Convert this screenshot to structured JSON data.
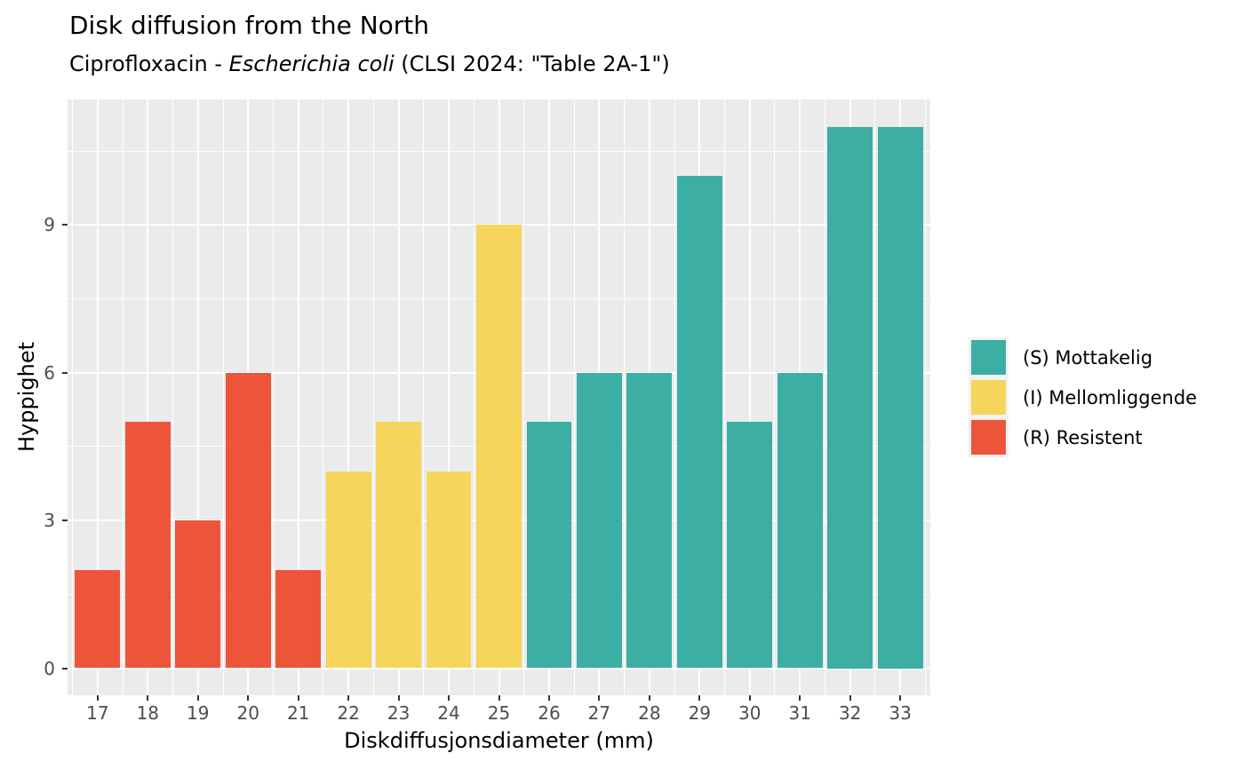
{
  "title": "Disk diffusion from the North",
  "subtitle_parts": {
    "prefix": "Ciprofloxacin - ",
    "italic": "Escherichia coli",
    "suffix": " (CLSI 2024: \"Table 2A-1\")"
  },
  "chart_data": {
    "type": "bar",
    "title": "Disk diffusion from the North",
    "subtitle": "Ciprofloxacin - Escherichia coli (CLSI 2024: \"Table 2A-1\")",
    "xlabel": "Diskdiffusjonsdiameter (mm)",
    "ylabel": "Hyppighet",
    "categories": [
      17,
      18,
      19,
      20,
      21,
      22,
      23,
      24,
      25,
      26,
      27,
      28,
      29,
      30,
      31,
      32,
      33
    ],
    "values": [
      2,
      5,
      3,
      6,
      2,
      4,
      5,
      4,
      9,
      5,
      6,
      6,
      10,
      5,
      6,
      11,
      11
    ],
    "groups": [
      "R",
      "R",
      "R",
      "R",
      "R",
      "I",
      "I",
      "I",
      "I",
      "S",
      "S",
      "S",
      "S",
      "S",
      "S",
      "S",
      "S"
    ],
    "colors": {
      "S": "#3CAEA3",
      "I": "#F6D55C",
      "R": "#ED553B"
    },
    "legend": [
      {
        "sir": "S",
        "label": "(S) Mottakelig",
        "color": "#3CAEA3"
      },
      {
        "sir": "I",
        "label": "(I) Mellomliggende",
        "color": "#F6D55C"
      },
      {
        "sir": "R",
        "label": "(R) Resistent",
        "color": "#ED553B"
      }
    ],
    "legend_position": "right",
    "y_ticks": [
      0,
      3,
      6,
      9
    ],
    "ylim": [
      0,
      11
    ],
    "bar_width": 0.9,
    "axis_ranges": {
      "x": [
        16.4,
        33.6
      ],
      "y": [
        -0.55,
        11.55
      ]
    },
    "grid": true,
    "panel_bg": "#EBEBEB",
    "grid_color": "#FFFFFF",
    "tick_color": "#333333",
    "tick_label_color": "#4D4D4D"
  }
}
